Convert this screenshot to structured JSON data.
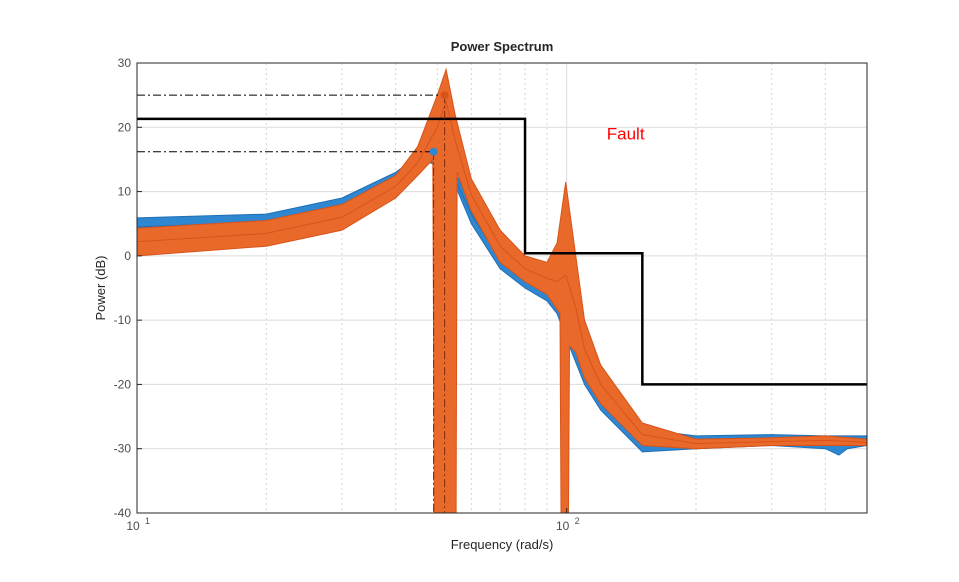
{
  "chart_data": {
    "type": "area",
    "title": "Power Spectrum",
    "xlabel": "Frequency  (rad/s)",
    "ylabel": "Power (dB)",
    "xscale": "log",
    "xlim": [
      10,
      500
    ],
    "ylim": [
      -40,
      30
    ],
    "yticks": [
      -40,
      -30,
      -20,
      -10,
      0,
      10,
      20,
      30
    ],
    "xticks": [
      {
        "value": 10,
        "base": "10",
        "exp": "1"
      },
      {
        "value": 100,
        "base": "10",
        "exp": "2"
      }
    ],
    "grid": true,
    "colors": {
      "blue": "#2f86d1",
      "orange": "#e8692a",
      "orange_edge": "#d95319",
      "bound": "#000000",
      "annotation": "#ff0000"
    },
    "bands": [
      {
        "color": "blue",
        "upper": [
          [
            10,
            5.9
          ],
          [
            20,
            6.5
          ],
          [
            30,
            9
          ],
          [
            40,
            13
          ],
          [
            45,
            15.5
          ],
          [
            48,
            16.5
          ],
          [
            50,
            16
          ],
          [
            55,
            13
          ],
          [
            60,
            8
          ],
          [
            70,
            1
          ],
          [
            80,
            -2
          ],
          [
            90,
            -4
          ],
          [
            95,
            -6
          ],
          [
            100,
            -10
          ],
          [
            110,
            -16
          ],
          [
            120,
            -20
          ],
          [
            150,
            -27
          ],
          [
            200,
            -28
          ],
          [
            300,
            -27.8
          ],
          [
            400,
            -28
          ],
          [
            500,
            -28
          ]
        ],
        "lower": [
          [
            10,
            3
          ],
          [
            20,
            4
          ],
          [
            30,
            6.5
          ],
          [
            40,
            11
          ],
          [
            45,
            13.5
          ],
          [
            48,
            14.5
          ],
          [
            50,
            14
          ],
          [
            55,
            11
          ],
          [
            60,
            5
          ],
          [
            70,
            -2
          ],
          [
            80,
            -5
          ],
          [
            90,
            -7
          ],
          [
            95,
            -9
          ],
          [
            100,
            -13
          ],
          [
            110,
            -20
          ],
          [
            120,
            -24
          ],
          [
            150,
            -30.5
          ],
          [
            200,
            -30
          ],
          [
            300,
            -29.5
          ],
          [
            400,
            -30
          ],
          [
            430,
            -31
          ],
          [
            450,
            -30
          ],
          [
            500,
            -29.5
          ]
        ],
        "lines": [
          [
            [
              10,
              4.5
            ],
            [
              20,
              5.2
            ],
            [
              30,
              7.8
            ],
            [
              40,
              12
            ],
            [
              45,
              14.5
            ],
            [
              48,
              15.5
            ],
            [
              50,
              15
            ],
            [
              55,
              12
            ],
            [
              60,
              6.5
            ],
            [
              70,
              -0.5
            ],
            [
              80,
              -3.5
            ],
            [
              90,
              -5.5
            ],
            [
              95,
              -7.5
            ],
            [
              100,
              -11.5
            ],
            [
              110,
              -18
            ],
            [
              120,
              -22
            ],
            [
              150,
              -28.7
            ],
            [
              200,
              -29
            ],
            [
              300,
              -28.6
            ],
            [
              400,
              -29
            ],
            [
              500,
              -28.8
            ]
          ]
        ]
      },
      {
        "color": "orange",
        "upper": [
          [
            10,
            4.3
          ],
          [
            20,
            5.5
          ],
          [
            30,
            8
          ],
          [
            40,
            12.5
          ],
          [
            45,
            17
          ],
          [
            50,
            25
          ],
          [
            52.4,
            29
          ],
          [
            55,
            22
          ],
          [
            60,
            12
          ],
          [
            70,
            4
          ],
          [
            80,
            0
          ],
          [
            90,
            -1
          ],
          [
            95,
            2
          ],
          [
            99.5,
            11.5
          ],
          [
            105,
            0
          ],
          [
            110,
            -10
          ],
          [
            120,
            -17
          ],
          [
            150,
            -26
          ],
          [
            200,
            -28.5
          ],
          [
            300,
            -28.3
          ],
          [
            400,
            -28
          ],
          [
            500,
            -28.5
          ]
        ],
        "lower": [
          [
            10,
            0
          ],
          [
            20,
            1.5
          ],
          [
            30,
            4
          ],
          [
            40,
            9
          ],
          [
            45,
            12.5
          ],
          [
            48.8,
            15
          ],
          [
            49.2,
            -40
          ],
          [
            55.3,
            -40
          ],
          [
            55.6,
            13
          ],
          [
            60,
            7
          ],
          [
            70,
            -1
          ],
          [
            80,
            -4
          ],
          [
            90,
            -6
          ],
          [
            96.5,
            -9
          ],
          [
            97,
            -40
          ],
          [
            101,
            -40
          ],
          [
            101.5,
            -14
          ],
          [
            105,
            -15
          ],
          [
            110,
            -19
          ],
          [
            120,
            -23
          ],
          [
            150,
            -29.5
          ],
          [
            200,
            -30
          ],
          [
            300,
            -29.5
          ],
          [
            400,
            -29.5
          ],
          [
            500,
            -29.5
          ]
        ],
        "lines": [
          [
            [
              10,
              2.2
            ],
            [
              20,
              3.5
            ],
            [
              30,
              6
            ],
            [
              40,
              10.8
            ],
            [
              45,
              14.5
            ],
            [
              50,
              20
            ],
            [
              52.4,
              24
            ],
            [
              55,
              18
            ],
            [
              60,
              9.5
            ],
            [
              70,
              1.5
            ],
            [
              80,
              -2
            ],
            [
              90,
              -3.5
            ],
            [
              95,
              -4
            ],
            [
              99.5,
              -3
            ],
            [
              105,
              -8
            ],
            [
              110,
              -14.5
            ],
            [
              120,
              -20
            ],
            [
              150,
              -27.8
            ],
            [
              200,
              -29.2
            ],
            [
              300,
              -28.9
            ],
            [
              400,
              -28.7
            ],
            [
              500,
              -29
            ]
          ]
        ]
      }
    ],
    "bound": {
      "color": "bound",
      "segments": [
        [
          10,
          80,
          21.3
        ],
        [
          80,
          150,
          0.4
        ],
        [
          150,
          500,
          -20
        ]
      ]
    },
    "markers": [
      {
        "color": "orange",
        "x": 52,
        "y": 25
      },
      {
        "color": "blue",
        "x": 49,
        "y": 16.2
      }
    ],
    "annotation": {
      "text": "Fault",
      "x": 138,
      "y": 19
    }
  }
}
